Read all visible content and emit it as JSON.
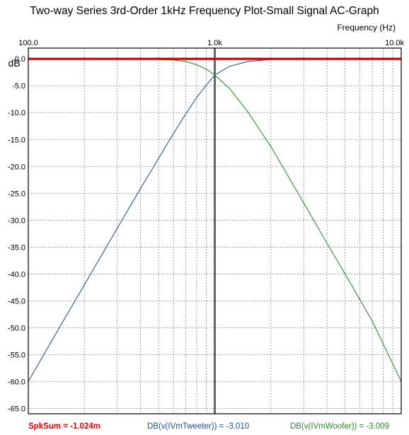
{
  "chart_data": {
    "type": "line",
    "title": "Two-way Series 3rd-Order 1kHz Frequency Plot-Small Signal AC-Graph",
    "xlabel": "Frequency  (Hz)",
    "ylabel": "dB",
    "xscale": "log",
    "xlim": [
      100,
      10000
    ],
    "ylim": [
      -66,
      2
    ],
    "x_ticks": [
      {
        "value": 100,
        "label": "100.0"
      },
      {
        "value": 1000,
        "label": "1.0k"
      },
      {
        "value": 10000,
        "label": "10.0k"
      }
    ],
    "y_ticks": [
      {
        "value": 0,
        "label": "0.0"
      },
      {
        "value": -5,
        "label": "-5.0"
      },
      {
        "value": -10,
        "label": "-10.0"
      },
      {
        "value": -15,
        "label": "-15.0"
      },
      {
        "value": -20,
        "label": "-20.0"
      },
      {
        "value": -25,
        "label": "-25.0"
      },
      {
        "value": -30,
        "label": "-30.0"
      },
      {
        "value": -35,
        "label": "-35.0"
      },
      {
        "value": -40,
        "label": "-40.0"
      },
      {
        "value": -45,
        "label": "-45.0"
      },
      {
        "value": -50,
        "label": "-50.0"
      },
      {
        "value": -55,
        "label": "-55.0"
      },
      {
        "value": -60,
        "label": "-60.0"
      },
      {
        "value": -65,
        "label": "-65.0"
      }
    ],
    "grid": true,
    "cursor_x": 1000,
    "series": [
      {
        "name": "SpkSum",
        "color": "#cc0000",
        "x": [
          100,
          200,
          500,
          1000,
          2000,
          5000,
          10000
        ],
        "y": [
          0,
          0,
          0,
          0,
          0,
          0,
          0
        ]
      },
      {
        "name": "DB(v(IVmTweeter))",
        "color": "#336699",
        "x": [
          100,
          150,
          200,
          300,
          400,
          500,
          600,
          700,
          800,
          900,
          1000,
          1200,
          1500,
          2000,
          2500,
          3000
        ],
        "y": [
          -60.0,
          -49.4,
          -42.0,
          -31.5,
          -24.1,
          -18.5,
          -13.9,
          -10.2,
          -7.2,
          -4.9,
          -3.0,
          -1.4,
          -0.5,
          -0.1,
          0,
          0
        ]
      },
      {
        "name": "DB(v(IVmWoofer))",
        "color": "#339933",
        "x": [
          300,
          400,
          500,
          600,
          700,
          800,
          900,
          1000,
          1200,
          1500,
          2000,
          3000,
          4000,
          5000,
          7000,
          10000
        ],
        "y": [
          0,
          0,
          -0.1,
          -0.2,
          -0.5,
          -1.1,
          -1.9,
          -3.0,
          -5.5,
          -9.8,
          -16.3,
          -26.8,
          -34.3,
          -40.0,
          -48.8,
          -60.0
        ]
      }
    ],
    "legend": {
      "position": "bottom",
      "entries": [
        {
          "label": "SpkSum = ",
          "value": "-1.024m",
          "color": "#e00000"
        },
        {
          "label": "DB(v(IVmTweeter)) = ",
          "value": "-3.010",
          "color": "#1f4e9c"
        },
        {
          "label": "DB(v(IVmWoofer)) = ",
          "value": "-3.009",
          "color": "#2a8a2a"
        }
      ]
    }
  }
}
